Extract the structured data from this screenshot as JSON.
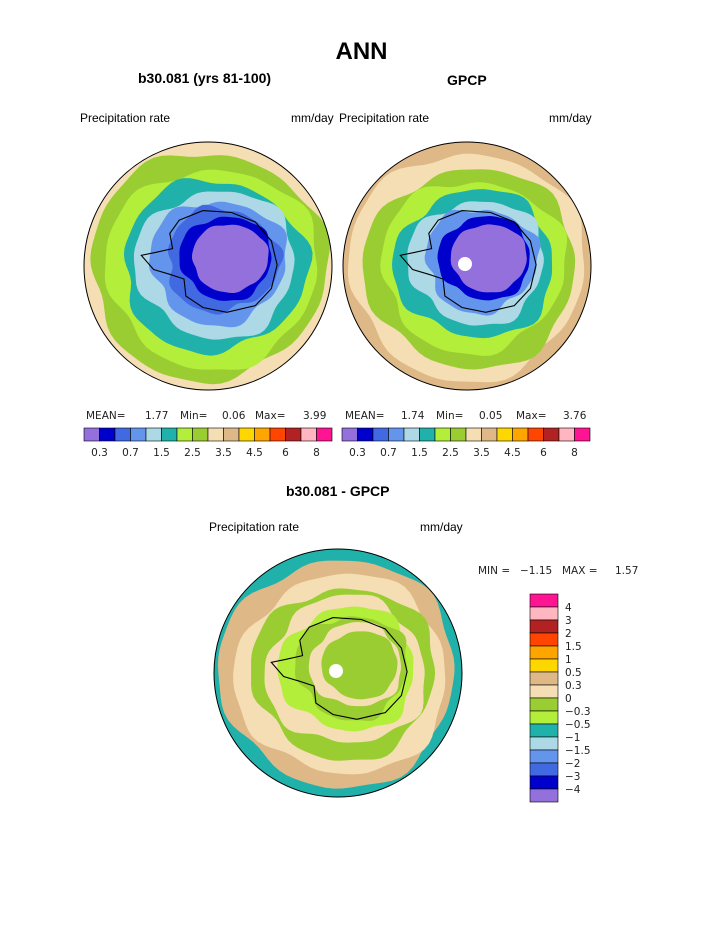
{
  "title": "ANN",
  "panels": [
    {
      "subtitle": "b30.081 (yrs 81-100)",
      "left_label": "Precipitation rate",
      "right_label": "mm/day",
      "stats": {
        "mean_label": "MEAN=",
        "mean": "1.77",
        "min_label": "Min=",
        "min": "0.06",
        "max_label": "Max=",
        "max": "3.99"
      }
    },
    {
      "subtitle": "GPCP",
      "left_label": "Precipitation rate",
      "right_label": "mm/day",
      "stats": {
        "mean_label": "MEAN=",
        "mean": "1.74",
        "min_label": "Min=",
        "min": "0.05",
        "max_label": "Max=",
        "max": "3.76"
      }
    },
    {
      "subtitle": "b30.081 - GPCP",
      "left_label": "Precipitation rate",
      "right_label": "mm/day",
      "stats": {
        "min_label": "MIN =",
        "min": "−1.15",
        "max_label": "MAX =",
        "max": "1.57"
      }
    }
  ],
  "chart_data": [
    {
      "type": "heatmap",
      "projection": "south polar stereographic",
      "title": "b30.081 (yrs 81-100)",
      "variable": "Precipitation rate",
      "units": "mm/day",
      "mean": 1.77,
      "min": 0.06,
      "max": 3.99,
      "levels": [
        "0.3",
        "0.7",
        "1.5",
        "2.5",
        "3.5",
        "4.5",
        "6",
        "8"
      ],
      "colors": [
        "#9370db",
        "#0000cd",
        "#4169e1",
        "#6495ed",
        "#add8e6",
        "#20b2aa",
        "#b3ee3a",
        "#9acd32",
        "#f5deb3",
        "#deb887",
        "#ffd700",
        "#ffa500",
        "#ff4500",
        "#b22222",
        "#ffb6c1",
        "#ff1493"
      ],
      "legend_placement": "bottom"
    },
    {
      "type": "heatmap",
      "projection": "south polar stereographic",
      "title": "GPCP",
      "variable": "Precipitation rate",
      "units": "mm/day",
      "mean": 1.74,
      "min": 0.05,
      "max": 3.76,
      "levels": [
        "0.3",
        "0.7",
        "1.5",
        "2.5",
        "3.5",
        "4.5",
        "6",
        "8"
      ],
      "colors": [
        "#9370db",
        "#0000cd",
        "#4169e1",
        "#6495ed",
        "#add8e6",
        "#20b2aa",
        "#b3ee3a",
        "#9acd32",
        "#f5deb3",
        "#deb887",
        "#ffd700",
        "#ffa500",
        "#ff4500",
        "#b22222",
        "#ffb6c1",
        "#ff1493"
      ],
      "legend_placement": "bottom"
    },
    {
      "type": "heatmap",
      "projection": "south polar stereographic",
      "title": "b30.081 - GPCP",
      "variable": "Precipitation rate",
      "units": "mm/day",
      "min": -1.15,
      "max": 1.57,
      "levels": [
        "4",
        "3",
        "2",
        "1.5",
        "1",
        "0.5",
        "0.3",
        "0",
        "−0.3",
        "−0.5",
        "−1",
        "−1.5",
        "−2",
        "−3",
        "−4"
      ],
      "colors": [
        "#ff1493",
        "#ffb6c1",
        "#b22222",
        "#ff4500",
        "#ffa500",
        "#ffd700",
        "#deb887",
        "#f5deb3",
        "#9acd32",
        "#b3ee3a",
        "#20b2aa",
        "#add8e6",
        "#6495ed",
        "#4169e1",
        "#0000cd",
        "#9370db"
      ],
      "legend_placement": "right"
    }
  ]
}
